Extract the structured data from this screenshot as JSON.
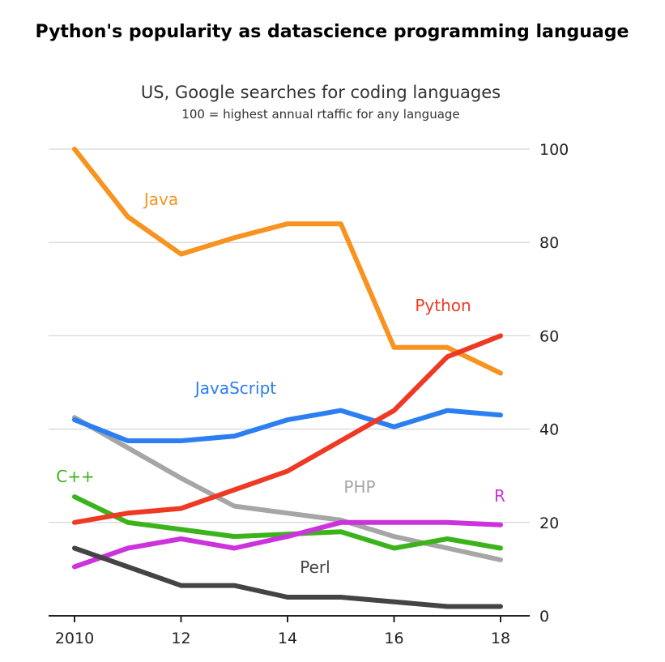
{
  "header": {
    "title": "Python's popularity as datascience programming language"
  },
  "chart_data": {
    "type": "line",
    "title": "US, Google searches for coding languages",
    "subtitle": "100 = highest annual rtaffic for any language",
    "xlabel": "",
    "ylabel": "",
    "x": [
      2010,
      2011,
      2012,
      2013,
      2014,
      2015,
      2016,
      2017,
      2018
    ],
    "x_ticks": [
      2010,
      2012,
      2014,
      2016,
      2018
    ],
    "x_tick_labels": [
      "2010",
      "12",
      "14",
      "16",
      "18"
    ],
    "y_ticks": [
      0,
      20,
      40,
      60,
      80,
      100
    ],
    "y_tick_labels": [
      "0",
      "20",
      "40",
      "60",
      "80",
      "100"
    ],
    "ylim": [
      0,
      100
    ],
    "grid": true,
    "y_axis_side": "right",
    "series": [
      {
        "name": "Java",
        "label": "Java",
        "color": "#f7931e",
        "values": [
          100,
          85.5,
          77.5,
          81,
          84,
          84,
          57.5,
          57.5,
          52
        ]
      },
      {
        "name": "Python",
        "label": "Python",
        "color": "#ee3a24",
        "values": [
          20,
          22,
          23,
          27,
          31,
          37.5,
          44,
          55.5,
          60
        ]
      },
      {
        "name": "JavaScript",
        "label": "JavaScript",
        "color": "#2b7ff0",
        "values": [
          42,
          37.5,
          37.5,
          38.5,
          42,
          44,
          40.5,
          44,
          43
        ]
      },
      {
        "name": "PHP",
        "label": "PHP",
        "color": "#a6a6a6",
        "values": [
          42.5,
          36,
          29.5,
          23.5,
          22,
          20.5,
          17,
          14.5,
          12
        ]
      },
      {
        "name": "C++",
        "label": "C++",
        "color": "#3cb31b",
        "values": [
          25.5,
          20,
          18.5,
          17,
          17.5,
          18,
          14.5,
          16.5,
          14.5
        ]
      },
      {
        "name": "R",
        "label": "R",
        "color": "#cc33dd",
        "values": [
          10.5,
          14.5,
          16.5,
          14.5,
          17,
          20,
          20,
          20,
          19.5
        ]
      },
      {
        "name": "Perl",
        "label": "Perl",
        "color": "#444444",
        "values": [
          14.5,
          10.5,
          6.5,
          6.5,
          4,
          4,
          3,
          2,
          2
        ]
      }
    ]
  }
}
